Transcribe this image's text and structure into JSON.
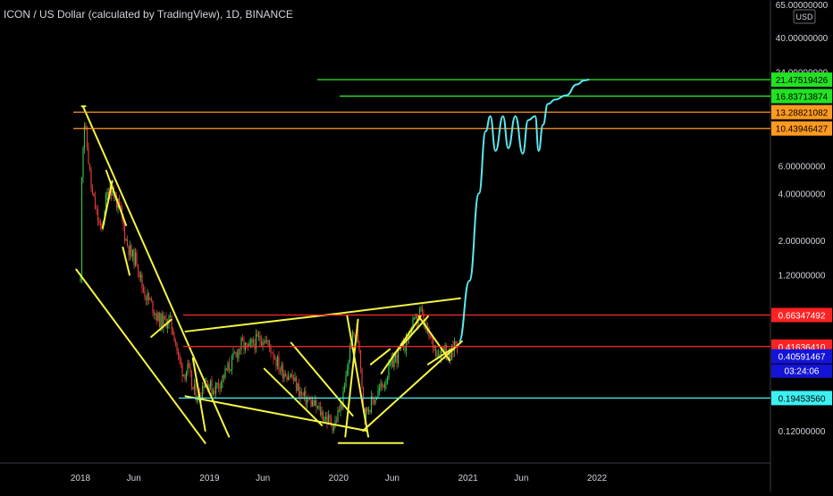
{
  "header": {
    "symbol_title": "ICON / US Dollar (calculated by TradingView), 1D, BINANCE"
  },
  "currency": "USD",
  "colors": {
    "background": "#000000",
    "axis_text": "#d1d4dc",
    "trendline": "#f5f542",
    "green_level": "#2ee82e",
    "orange_level": "#ff9a1f",
    "red_level": "#ff2a2a",
    "cyan_level": "#4ff0ee",
    "projection": "#5ce8f0",
    "candle_up": "#31c24a",
    "candle_down": "#e23b3b"
  },
  "chart_data": {
    "type": "line",
    "title": "ICON / US Dollar (calculated by TradingView), 1D, BINANCE",
    "yscale": "log",
    "x_tick_labels": [
      "2018",
      "Jun",
      "2019",
      "Jun",
      "2020",
      "Jun",
      "2021",
      "Jun",
      "2022"
    ],
    "y_tick_labels": [
      "65.00000000",
      "40.00000000",
      "24.00000000",
      "6.00000000",
      "4.00000000",
      "2.00000000",
      "1.20000000",
      "0.12000000"
    ],
    "levels": [
      {
        "value": 21.47519426,
        "label": "21.47519426",
        "kind": "green"
      },
      {
        "value": 16.83713874,
        "label": "16.83713874",
        "kind": "green"
      },
      {
        "value": 13.28821082,
        "label": "13.28821082",
        "kind": "orange"
      },
      {
        "value": 10.43946427,
        "label": "10.43946427",
        "kind": "orange"
      },
      {
        "value": 0.66347492,
        "label": "0.66347492",
        "kind": "red"
      },
      {
        "value": 0.4163641,
        "label": "0.41636410",
        "kind": "red"
      },
      {
        "value": 0.1945356,
        "label": "0.19453560",
        "kind": "cyan"
      }
    ],
    "last_price": {
      "value": 0.40591467,
      "label": "0.40591467"
    },
    "countdown": "03:24:06",
    "series": [
      {
        "type": "candlestick-approx",
        "points": [
          [
            "2018-01-01",
            1.1
          ],
          [
            "2018-01-05",
            6.0
          ],
          [
            "2018-01-12",
            11.5
          ],
          [
            "2018-01-20",
            8.0
          ],
          [
            "2018-02-01",
            4.2
          ],
          [
            "2018-02-15",
            3.0
          ],
          [
            "2018-03-01",
            2.2
          ],
          [
            "2018-03-12",
            3.5
          ],
          [
            "2018-03-25",
            4.5
          ],
          [
            "2018-04-10",
            3.7
          ],
          [
            "2018-04-25",
            3.0
          ],
          [
            "2018-05-10",
            2.0
          ],
          [
            "2018-05-25",
            1.6
          ],
          [
            "2018-06-10",
            1.5
          ],
          [
            "2018-06-25",
            1.0
          ],
          [
            "2018-07-10",
            0.85
          ],
          [
            "2018-07-25",
            0.75
          ],
          [
            "2018-08-10",
            0.62
          ],
          [
            "2018-08-25",
            0.6
          ],
          [
            "2018-09-10",
            0.62
          ],
          [
            "2018-09-25",
            0.48
          ],
          [
            "2018-10-05",
            0.35
          ],
          [
            "2018-10-20",
            0.28
          ],
          [
            "2018-11-01",
            0.3
          ],
          [
            "2018-11-15",
            0.22
          ],
          [
            "2018-12-01",
            0.2
          ],
          [
            "2018-12-20",
            0.26
          ],
          [
            "2019-01-10",
            0.22
          ],
          [
            "2019-02-01",
            0.25
          ],
          [
            "2019-03-01",
            0.32
          ],
          [
            "2019-04-01",
            0.43
          ],
          [
            "2019-04-20",
            0.4
          ],
          [
            "2019-05-10",
            0.45
          ],
          [
            "2019-06-01",
            0.48
          ],
          [
            "2019-06-25",
            0.4
          ],
          [
            "2019-07-20",
            0.3
          ],
          [
            "2019-08-20",
            0.27
          ],
          [
            "2019-09-20",
            0.2
          ],
          [
            "2019-10-20",
            0.18
          ],
          [
            "2019-11-20",
            0.15
          ],
          [
            "2019-12-20",
            0.13
          ],
          [
            "2020-01-15",
            0.2
          ],
          [
            "2020-02-05",
            0.45
          ],
          [
            "2020-02-20",
            0.52
          ],
          [
            "2020-03-01",
            0.4
          ],
          [
            "2020-03-13",
            0.15
          ],
          [
            "2020-03-25",
            0.17
          ],
          [
            "2020-04-15",
            0.2
          ],
          [
            "2020-05-10",
            0.25
          ],
          [
            "2020-06-01",
            0.33
          ],
          [
            "2020-06-20",
            0.38
          ],
          [
            "2020-07-10",
            0.45
          ],
          [
            "2020-07-25",
            0.55
          ],
          [
            "2020-08-10",
            0.62
          ],
          [
            "2020-08-20",
            0.7
          ],
          [
            "2020-09-05",
            0.52
          ],
          [
            "2020-09-20",
            0.45
          ],
          [
            "2020-10-10",
            0.38
          ],
          [
            "2020-10-25",
            0.42
          ],
          [
            "2020-11-10",
            0.34
          ],
          [
            "2020-11-25",
            0.45
          ],
          [
            "2020-12-05",
            0.4059
          ]
        ]
      },
      {
        "name": "projection",
        "points": [
          [
            "2020-12-07",
            0.45
          ],
          [
            "2021-01-05",
            1.1
          ],
          [
            "2021-02-01",
            4.0
          ],
          [
            "2021-02-20",
            10.0
          ],
          [
            "2021-03-05",
            12.5
          ],
          [
            "2021-03-20",
            7.5
          ],
          [
            "2021-04-10",
            12.5
          ],
          [
            "2021-04-25",
            7.8
          ],
          [
            "2021-05-15",
            12.5
          ],
          [
            "2021-06-05",
            7.2
          ],
          [
            "2021-06-20",
            11.8
          ],
          [
            "2021-07-10",
            12.5
          ],
          [
            "2021-07-20",
            7.5
          ],
          [
            "2021-08-01",
            11.0
          ],
          [
            "2021-08-15",
            15.0
          ],
          [
            "2021-09-05",
            16.0
          ],
          [
            "2021-10-05",
            17.0
          ],
          [
            "2021-11-05",
            20.0
          ],
          [
            "2021-11-25",
            21.2
          ],
          [
            "2021-12-10",
            21.47
          ]
        ]
      }
    ],
    "trendlines": [
      {
        "from": [
          "2017-12-20",
          1.3
        ],
        "to": [
          "2018-12-20",
          0.1
        ]
      },
      {
        "from": [
          "2018-01-08",
          14.5
        ],
        "to": [
          "2019-02-25",
          0.11
        ]
      },
      {
        "from": [
          "2018-01-05",
          14.5
        ],
        "to": [
          "2018-01-15",
          14.5
        ]
      },
      {
        "from": [
          "2018-03-05",
          2.4
        ],
        "to": [
          "2018-04-01",
          4.8
        ]
      },
      {
        "from": [
          "2018-03-15",
          5.6
        ],
        "to": [
          "2018-05-10",
          2.5
        ]
      },
      {
        "from": [
          "2018-05-01",
          1.8
        ],
        "to": [
          "2018-05-20",
          1.2
        ]
      },
      {
        "from": [
          "2018-07-20",
          0.48
        ],
        "to": [
          "2018-09-15",
          0.62
        ]
      },
      {
        "from": [
          "2018-10-25",
          0.52
        ],
        "to": [
          "2020-01-05",
          0.68
        ]
      },
      {
        "from": [
          "2020-01-05",
          0.68
        ],
        "to": [
          "2020-12-10",
          0.85
        ]
      },
      {
        "from": [
          "2018-10-25",
          0.2
        ],
        "to": [
          "2020-03-20",
          0.12
        ]
      },
      {
        "from": [
          "2019-06-05",
          0.3
        ],
        "to": [
          "2019-11-15",
          0.13
        ]
      },
      {
        "from": [
          "2019-08-20",
          0.44
        ],
        "to": [
          "2020-02-10",
          0.15
        ]
      },
      {
        "from": [
          "2020-01-20",
          0.11
        ],
        "to": [
          "2020-02-25",
          0.62
        ]
      },
      {
        "from": [
          "2020-01-25",
          0.66
        ],
        "to": [
          "2020-03-25",
          0.11
        ]
      },
      {
        "from": [
          "2020-03-10",
          0.12
        ],
        "to": [
          "2020-12-15",
          0.45
        ]
      },
      {
        "from": [
          "2020-05-01",
          0.28
        ],
        "to": [
          "2020-08-20",
          0.65
        ]
      },
      {
        "from": [
          "2020-06-05",
          0.37
        ],
        "to": [
          "2020-09-10",
          0.65
        ]
      },
      {
        "from": [
          "2020-08-15",
          0.65
        ],
        "to": [
          "2020-11-10",
          0.34
        ]
      },
      {
        "from": [
          "2020-09-10",
          0.32
        ],
        "to": [
          "2020-11-15",
          0.4
        ]
      },
      {
        "from": [
          "2020-04-01",
          0.32
        ],
        "to": [
          "2020-05-25",
          0.4
        ]
      },
      {
        "from": [
          "2018-11-15",
          0.35
        ],
        "to": [
          "2018-12-20",
          0.12
        ]
      },
      {
        "from": [
          "2020-01-01",
          0.1
        ],
        "to": [
          "2020-07-01",
          0.1
        ]
      }
    ]
  }
}
